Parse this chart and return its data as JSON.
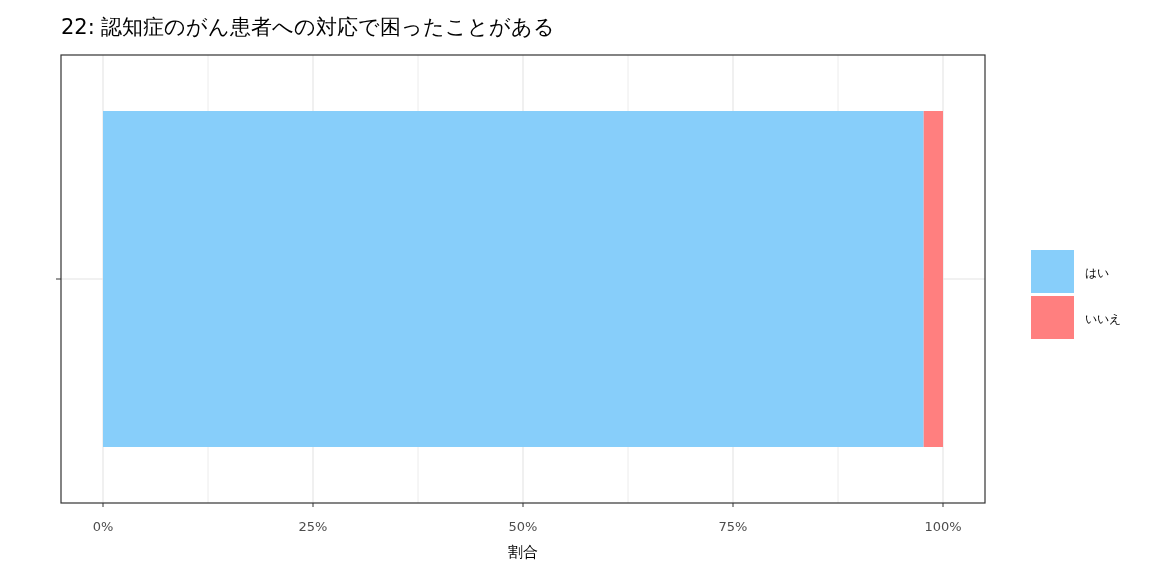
{
  "chart_data": {
    "type": "bar",
    "title": "22: 認知症のがん患者への対応で困ったことがある",
    "xlabel": "割合",
    "orientation": "horizontal",
    "stacked": true,
    "categories": [
      null
    ],
    "series": [
      {
        "name": "はい",
        "color": "#87cefa",
        "values": [
          97.7
        ]
      },
      {
        "name": "いいえ",
        "color": "#ff7f7f",
        "values": [
          2.3
        ]
      }
    ],
    "xlim": [
      -5,
      105
    ],
    "xticks": [
      {
        "value": 0,
        "label": "0%"
      },
      {
        "value": 12.5,
        "label": null
      },
      {
        "value": 25,
        "label": "25%"
      },
      {
        "value": 37.5,
        "label": null
      },
      {
        "value": 50,
        "label": "50%"
      },
      {
        "value": 62.5,
        "label": null
      },
      {
        "value": 75,
        "label": "75%"
      },
      {
        "value": 87.5,
        "label": null
      },
      {
        "value": 100,
        "label": "100%"
      }
    ],
    "grid": true,
    "legend": "right"
  }
}
